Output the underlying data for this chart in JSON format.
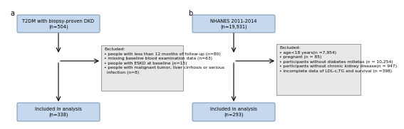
{
  "panel_a_label": "a",
  "panel_b_label": "b",
  "box_fill_color": "#c5d8ed",
  "box_edge_color": "#7f9fbf",
  "excl_fill_color": "#e8e8e8",
  "excl_edge_color": "#9a9a9a",
  "arrow_color": "black",
  "text_color": "black",
  "bg_color": "white",
  "font_size": 4.8,
  "panel_a": {
    "top_box_line1": "T2DM with biopsy-proven DKD",
    "top_box_line2": "(n=504)",
    "excl_text": "Excluded:\n• people with less than 12 months of follow-up (n=80)\n• missing baseline blood examination data (n=63)\n• people with ESKD at baseline (n=15)\n• people with malignant tumor, liver cirrhosis or serious\n  infection (n=8)",
    "bottom_box_line1": "Included in analysis",
    "bottom_box_line2": "(n=338)"
  },
  "panel_b": {
    "top_box_line1": "NHANES 2011-2014",
    "top_box_line2": "(n=19,931)",
    "excl_text": "Excluded:\n• age<18 years(n =7,954)\n• pregnant (n = 85)\n• participants without diabetes milletus (n = 10,254)\n• participants without chronic kidney disease(n = 947)\n• incomplete data of LDL-c,TG and survival (n =398)",
    "bottom_box_line1": "Included in analysis",
    "bottom_box_line2": "(n=293)"
  }
}
